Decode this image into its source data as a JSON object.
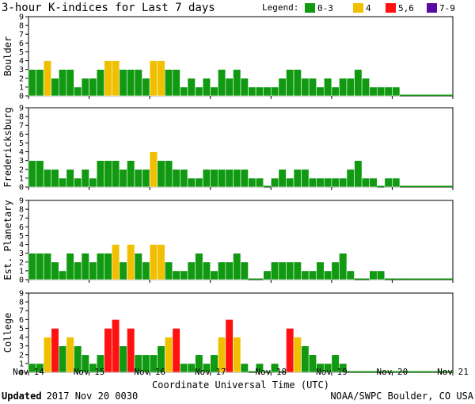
{
  "title": "3-hour K-indices for Last 7 days",
  "legend": {
    "label": "Legend:",
    "items": [
      {
        "name": "0-3",
        "color": "#119911"
      },
      {
        "name": "4",
        "color": "#f0c000"
      },
      {
        "name": "5,6",
        "color": "#ff1111"
      },
      {
        "name": "7-9",
        "color": "#5a0aa0"
      }
    ]
  },
  "footer": {
    "updated_label": "Updated",
    "updated_value": "2017 Nov 20 0030",
    "source": "NOAA/SWPC Boulder, CO USA"
  },
  "chart_data": {
    "type": "bar",
    "xlabel": "Coordinate Universal Time (UTC)",
    "x_tick_labels": [
      "Nov 14",
      "Nov 15",
      "Nov 16",
      "Nov 17",
      "Nov 18",
      "Nov 19",
      "Nov 20",
      "Nov 21"
    ],
    "ylim": [
      0,
      9
    ],
    "y_ticks": [
      0,
      1,
      2,
      3,
      4,
      5,
      6,
      7,
      8,
      9
    ],
    "bars_per_day": 8,
    "days": 7,
    "series": [
      {
        "name": "Boulder",
        "values": [
          3,
          3,
          4,
          2,
          3,
          3,
          1,
          2,
          2,
          3,
          4,
          4,
          3,
          3,
          3,
          2,
          4,
          4,
          3,
          3,
          1,
          2,
          1,
          2,
          1,
          3,
          2,
          3,
          2,
          1,
          1,
          1,
          1,
          2,
          3,
          3,
          2,
          2,
          1,
          2,
          1,
          2,
          2,
          3,
          2,
          1,
          1,
          1,
          1,
          0,
          0,
          0,
          0,
          0,
          0,
          0
        ]
      },
      {
        "name": "Fredericksburg",
        "values": [
          3,
          3,
          2,
          2,
          1,
          2,
          1,
          2,
          1,
          3,
          3,
          3,
          2,
          3,
          2,
          2,
          4,
          3,
          3,
          2,
          2,
          1,
          1,
          2,
          2,
          2,
          2,
          2,
          2,
          1,
          1,
          0,
          1,
          2,
          1,
          2,
          2,
          1,
          1,
          1,
          1,
          1,
          2,
          3,
          1,
          1,
          0,
          1,
          1,
          0,
          0,
          0,
          0,
          0,
          0,
          0
        ]
      },
      {
        "name": "Est. Planetary",
        "values": [
          3,
          3,
          3,
          2,
          1,
          3,
          2,
          3,
          2,
          3,
          3,
          4,
          2,
          4,
          3,
          2,
          4,
          4,
          2,
          1,
          1,
          2,
          3,
          2,
          1,
          2,
          2,
          3,
          2,
          0,
          0,
          1,
          2,
          2,
          2,
          2,
          1,
          1,
          2,
          1,
          2,
          3,
          1,
          0,
          0,
          1,
          1,
          0,
          0,
          0,
          0,
          0,
          0,
          0,
          0,
          0
        ]
      },
      {
        "name": "College",
        "values": [
          1,
          1,
          4,
          5,
          3,
          4,
          3,
          2,
          1,
          2,
          5,
          6,
          3,
          5,
          2,
          2,
          2,
          3,
          4,
          5,
          1,
          1,
          2,
          1,
          2,
          4,
          6,
          4,
          1,
          0,
          1,
          0,
          1,
          0,
          5,
          4,
          3,
          2,
          1,
          1,
          2,
          1,
          0,
          0,
          0,
          0,
          0,
          0,
          0,
          0,
          0,
          0,
          0,
          0,
          0,
          0
        ]
      }
    ]
  }
}
